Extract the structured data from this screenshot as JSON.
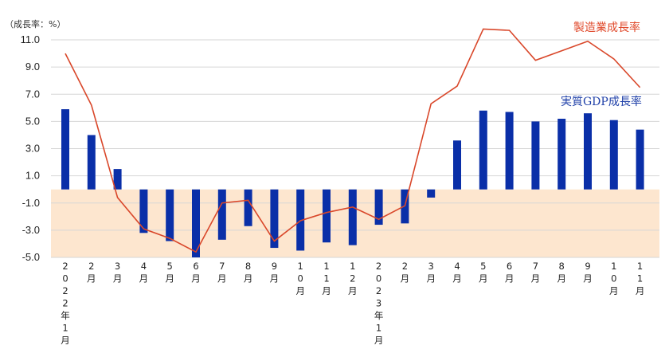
{
  "chart_data": {
    "type": "bar+line",
    "unit_label": "（成長率：%）",
    "y_ticks": [
      "11.0",
      "9.0",
      "7.0",
      "5.0",
      "3.0",
      "1.0",
      "-1.0",
      "-3.0",
      "-5.0"
    ],
    "ylim": [
      -5.0,
      12.0
    ],
    "negative_band_color": "#fde6cf",
    "categories": [
      "2022年1月",
      "2月",
      "3月",
      "4月",
      "5月",
      "6月",
      "7月",
      "8月",
      "9月",
      "10月",
      "11月",
      "12月",
      "2023年1月",
      "2月",
      "3月",
      "4月",
      "5月",
      "6月",
      "7月",
      "8月",
      "9月",
      "10月",
      "11月"
    ],
    "series": [
      {
        "name": "実質GDP成長率",
        "kind": "bar",
        "color": "#0a2fa8",
        "label_color": "#1e3fa8",
        "values": [
          5.9,
          4.0,
          1.5,
          -3.2,
          -3.8,
          -5.0,
          -3.7,
          -2.7,
          -4.3,
          -4.5,
          -3.9,
          -4.1,
          -2.6,
          -2.5,
          -0.6,
          3.6,
          5.8,
          5.7,
          5.0,
          5.2,
          5.6,
          5.1,
          4.4
        ]
      },
      {
        "name": "製造業成長率",
        "kind": "line",
        "color": "#d9472a",
        "values": [
          10.0,
          6.2,
          -0.6,
          -2.9,
          -3.6,
          -4.6,
          -1.0,
          -0.8,
          -3.8,
          -2.3,
          -1.7,
          -1.3,
          -2.2,
          -1.2,
          6.3,
          7.6,
          11.8,
          11.7,
          9.5,
          10.2,
          10.9,
          9.6,
          7.5
        ]
      }
    ]
  }
}
